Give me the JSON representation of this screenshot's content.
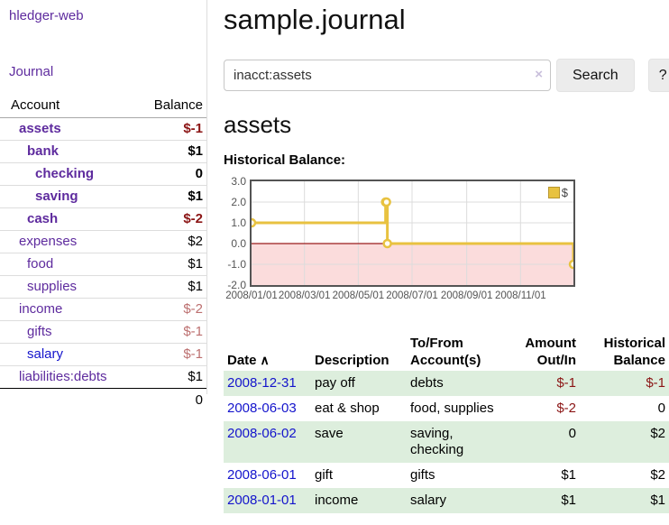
{
  "app": {
    "title": "hledger-web"
  },
  "sidebar": {
    "journal_link": "Journal",
    "columns": {
      "account": "Account",
      "balance": "Balance"
    },
    "accounts": [
      {
        "name": "assets",
        "balance": "$-1",
        "depth": 1,
        "bold": true,
        "balance_style": "negative-bold"
      },
      {
        "name": "bank",
        "balance": "$1",
        "depth": 2,
        "bold": true,
        "balance_style": "normal"
      },
      {
        "name": "checking",
        "balance": "0",
        "depth": 3,
        "bold": true,
        "balance_style": "normal"
      },
      {
        "name": "saving",
        "balance": "$1",
        "depth": 3,
        "bold": true,
        "balance_style": "normal"
      },
      {
        "name": "cash",
        "balance": "$-2",
        "depth": 2,
        "bold": true,
        "balance_style": "negative-bold"
      },
      {
        "name": "expenses",
        "balance": "$2",
        "depth": 1,
        "bold": false,
        "balance_style": "normal"
      },
      {
        "name": "food",
        "balance": "$1",
        "depth": 2,
        "bold": false,
        "balance_style": "normal"
      },
      {
        "name": "supplies",
        "balance": "$1",
        "depth": 2,
        "bold": false,
        "balance_style": "normal"
      },
      {
        "name": "income",
        "balance": "$-2",
        "depth": 1,
        "bold": false,
        "balance_style": "negative-soft"
      },
      {
        "name": "gifts",
        "balance": "$-1",
        "depth": 2,
        "bold": false,
        "balance_style": "negative-soft"
      },
      {
        "name": "salary",
        "balance": "$-1",
        "depth": 2,
        "bold": false,
        "balance_style": "negative-soft",
        "link_style": "blue"
      },
      {
        "name": "liabilities:debts",
        "balance": "$1",
        "depth": 1,
        "bold": false,
        "balance_style": "normal"
      }
    ],
    "total": "0"
  },
  "header": {
    "title": "sample.journal"
  },
  "search": {
    "value": "inacct:assets",
    "clear_icon": "×",
    "button_label": "Search",
    "help_label": "?"
  },
  "register": {
    "heading": "assets"
  },
  "chart_data": {
    "type": "line",
    "step": true,
    "title": "Historical Balance:",
    "series": [
      {
        "name": "$",
        "color": "#E8C240",
        "points": [
          [
            "2008-01-01",
            1
          ],
          [
            "2008-06-01",
            2
          ],
          [
            "2008-06-02",
            2
          ],
          [
            "2008-06-03",
            0
          ],
          [
            "2008-12-31",
            -1
          ]
        ]
      }
    ],
    "xlim": [
      "2008-01-01",
      "2008-12-31"
    ],
    "ylim": [
      -2,
      3
    ],
    "y_ticks": [
      {
        "value": 3,
        "label": "3.0"
      },
      {
        "value": 2,
        "label": "2.0"
      },
      {
        "value": 1,
        "label": "1.0"
      },
      {
        "value": 0,
        "label": "0.0"
      },
      {
        "value": -1,
        "label": "-1.0"
      },
      {
        "value": -2,
        "label": "-2.0"
      }
    ],
    "x_ticks": [
      {
        "date": "2008-01-01",
        "label": "2008/01/01"
      },
      {
        "date": "2008-03-01",
        "label": "2008/03/01"
      },
      {
        "date": "2008-05-01",
        "label": "2008/05/01"
      },
      {
        "date": "2008-07-01",
        "label": "2008/07/01"
      },
      {
        "date": "2008-09-01",
        "label": "2008/09/01"
      },
      {
        "date": "2008-11-01",
        "label": "2008/11/01"
      }
    ],
    "negative_region": true,
    "legend": {
      "label": "$",
      "position": "top-right"
    },
    "grid": true
  },
  "table": {
    "headers": {
      "date": "Date",
      "sort_icon": "∧",
      "description": "Description",
      "accounts": "To/From Account(s)",
      "amount": "Amount Out/In",
      "balance": "Historical Balance"
    },
    "rows": [
      {
        "date": "2008-12-31",
        "description": "pay off",
        "accounts": "debts",
        "amount": "$-1",
        "balance": "$-1",
        "amount_negative": true,
        "balance_negative": true,
        "highlighted": true
      },
      {
        "date": "2008-06-03",
        "description": "eat & shop",
        "accounts": "food, supplies",
        "amount": "$-2",
        "balance": "0",
        "amount_negative": true,
        "balance_negative": false,
        "highlighted": false
      },
      {
        "date": "2008-06-02",
        "description": "save",
        "accounts": "saving, checking",
        "amount": "0",
        "balance": "$2",
        "amount_negative": false,
        "balance_negative": false,
        "highlighted": true
      },
      {
        "date": "2008-06-01",
        "description": "gift",
        "accounts": "gifts",
        "amount": "$1",
        "balance": "$2",
        "amount_negative": false,
        "balance_negative": false,
        "highlighted": false
      },
      {
        "date": "2008-01-01",
        "description": "income",
        "accounts": "salary",
        "amount": "$1",
        "balance": "$1",
        "amount_negative": false,
        "balance_negative": false,
        "highlighted": true
      }
    ]
  },
  "colors": {
    "link_purple": "#5e2b9e",
    "link_blue": "#1414cc",
    "negative_strong": "#8b1515",
    "negative_soft": "#bc6f6f",
    "row_highlight": "#ddeedd",
    "chart_line": "#E8C240",
    "chart_negative_fill": "#fbdcdc",
    "chart_zero_line": "#9a1c1c",
    "axis_text": "#545454"
  }
}
